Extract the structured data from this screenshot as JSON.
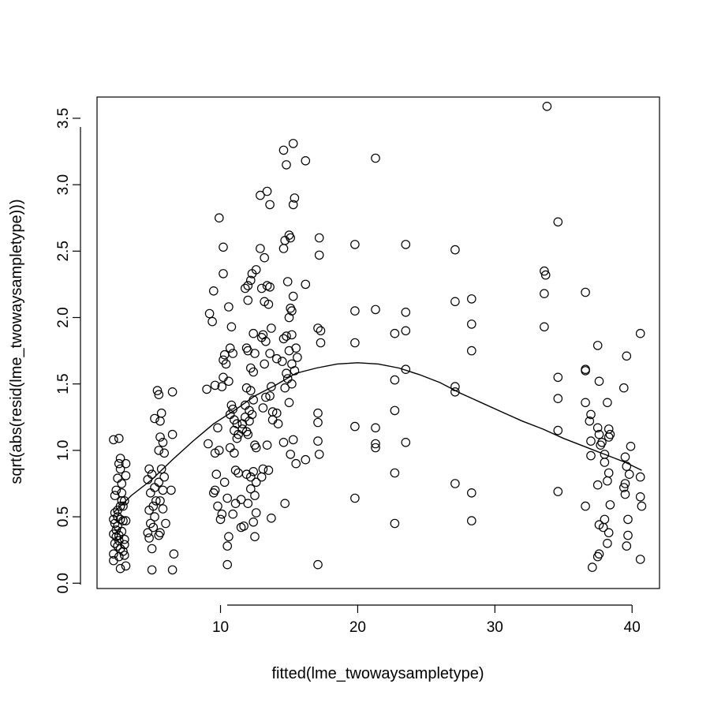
{
  "chart_data": {
    "type": "scatter",
    "xlabel": "fitted(lme_twowaysampletype)",
    "ylabel": "sqrt(abs(resid(lme_twowaysampletype)))",
    "xlim": [
      1.0,
      42.0
    ],
    "ylim": [
      -0.04,
      3.66
    ],
    "x_ticks": [
      10,
      20,
      30,
      40
    ],
    "y_ticks": [
      0.0,
      0.5,
      1.0,
      1.5,
      2.0,
      2.5,
      3.0,
      3.5
    ],
    "x_tick_labels": [
      "10",
      "20",
      "30",
      "40"
    ],
    "y_tick_labels": [
      "0.0",
      "0.5",
      "1.0",
      "1.5",
      "2.0",
      "2.5",
      "3.0",
      "3.5"
    ],
    "grid": false,
    "legend": "none",
    "points": [
      [
        2.2,
        1.08
      ],
      [
        2.6,
        1.09
      ],
      [
        2.7,
        0.94
      ],
      [
        2.6,
        0.9
      ],
      [
        2.7,
        0.86
      ],
      [
        2.5,
        0.79
      ],
      [
        2.8,
        0.75
      ],
      [
        3.1,
        0.9
      ],
      [
        3.1,
        0.81
      ],
      [
        2.4,
        0.7
      ],
      [
        2.3,
        0.66
      ],
      [
        2.8,
        0.62
      ],
      [
        3.0,
        0.62
      ],
      [
        2.7,
        0.58
      ],
      [
        2.5,
        0.55
      ],
      [
        2.3,
        0.53
      ],
      [
        2.2,
        0.48
      ],
      [
        2.3,
        0.45
      ],
      [
        2.5,
        0.43
      ],
      [
        2.7,
        0.48
      ],
      [
        2.9,
        0.47
      ],
      [
        3.1,
        0.47
      ],
      [
        2.4,
        0.4
      ],
      [
        2.2,
        0.37
      ],
      [
        2.6,
        0.36
      ],
      [
        2.8,
        0.39
      ],
      [
        3.0,
        0.33
      ],
      [
        2.3,
        0.3
      ],
      [
        2.5,
        0.28
      ],
      [
        2.7,
        0.26
      ],
      [
        2.9,
        0.24
      ],
      [
        2.2,
        0.22
      ],
      [
        2.6,
        0.2
      ],
      [
        3.0,
        0.21
      ],
      [
        2.2,
        0.17
      ],
      [
        2.7,
        0.11
      ],
      [
        3.1,
        0.13
      ],
      [
        2.4,
        0.35
      ],
      [
        2.6,
        0.32
      ],
      [
        2.9,
        0.58
      ],
      [
        2.5,
        0.5
      ],
      [
        2.8,
        0.68
      ],
      [
        3.0,
        0.29
      ],
      [
        4.8,
        0.86
      ],
      [
        5.0,
        0.82
      ],
      [
        4.7,
        0.78
      ],
      [
        5.2,
        0.72
      ],
      [
        4.9,
        0.68
      ],
      [
        5.3,
        0.62
      ],
      [
        5.1,
        0.58
      ],
      [
        4.8,
        0.55
      ],
      [
        5.2,
        0.5
      ],
      [
        4.9,
        0.45
      ],
      [
        5.1,
        0.42
      ],
      [
        4.7,
        0.38
      ],
      [
        4.8,
        0.34
      ],
      [
        5.5,
        0.36
      ],
      [
        5.0,
        0.26
      ],
      [
        5.4,
        1.45
      ],
      [
        5.5,
        1.42
      ],
      [
        5.2,
        1.24
      ],
      [
        5.7,
        1.28
      ],
      [
        5.6,
        1.22
      ],
      [
        5.6,
        1.1
      ],
      [
        5.8,
        1.06
      ],
      [
        5.5,
        1.0
      ],
      [
        5.9,
        0.98
      ],
      [
        5.7,
        0.86
      ],
      [
        5.9,
        0.8
      ],
      [
        5.5,
        0.76
      ],
      [
        5.8,
        0.7
      ],
      [
        5.6,
        0.62
      ],
      [
        5.8,
        0.56
      ],
      [
        6.0,
        0.45
      ],
      [
        5.6,
        0.38
      ],
      [
        6.5,
        1.44
      ],
      [
        6.5,
        1.12
      ],
      [
        6.4,
        0.7
      ],
      [
        6.6,
        0.22
      ],
      [
        6.5,
        0.1
      ],
      [
        5.0,
        0.1
      ],
      [
        9.9,
        2.75
      ],
      [
        9.5,
        2.2
      ],
      [
        9.2,
        2.03
      ],
      [
        9.4,
        1.97
      ],
      [
        9.0,
        1.46
      ],
      [
        9.6,
        1.49
      ],
      [
        9.1,
        1.05
      ],
      [
        9.8,
        1.17
      ],
      [
        9.6,
        0.98
      ],
      [
        9.9,
        1.0
      ],
      [
        9.7,
        0.82
      ],
      [
        10.3,
        0.76
      ],
      [
        9.5,
        0.68
      ],
      [
        9.6,
        0.7
      ],
      [
        9.8,
        0.58
      ],
      [
        10.1,
        0.52
      ],
      [
        10.0,
        0.48
      ],
      [
        10.2,
        2.53
      ],
      [
        10.2,
        2.33
      ],
      [
        10.6,
        2.08
      ],
      [
        10.8,
        1.93
      ],
      [
        10.7,
        1.77
      ],
      [
        10.9,
        1.73
      ],
      [
        10.3,
        1.72
      ],
      [
        10.2,
        1.68
      ],
      [
        10.4,
        1.65
      ],
      [
        10.2,
        1.55
      ],
      [
        10.6,
        1.52
      ],
      [
        10.1,
        1.48
      ],
      [
        10.8,
        1.34
      ],
      [
        10.9,
        1.31
      ],
      [
        10.7,
        1.27
      ],
      [
        11.0,
        1.23
      ],
      [
        11.2,
        1.2
      ],
      [
        11.0,
        1.15
      ],
      [
        11.3,
        1.12
      ],
      [
        11.2,
        1.09
      ],
      [
        10.7,
        1.02
      ],
      [
        11.0,
        0.98
      ],
      [
        11.1,
        0.85
      ],
      [
        11.3,
        0.83
      ],
      [
        10.5,
        0.64
      ],
      [
        11.1,
        0.6
      ],
      [
        10.9,
        0.52
      ],
      [
        10.6,
        0.35
      ],
      [
        10.5,
        0.28
      ],
      [
        10.5,
        0.14
      ],
      [
        11.5,
        0.63
      ],
      [
        11.5,
        0.42
      ],
      [
        11.7,
        0.43
      ],
      [
        12.0,
        2.24
      ],
      [
        11.8,
        2.22
      ],
      [
        12.3,
        2.33
      ],
      [
        12.2,
        2.28
      ],
      [
        12.6,
        2.36
      ],
      [
        12.0,
        2.13
      ],
      [
        12.4,
        1.88
      ],
      [
        11.9,
        1.77
      ],
      [
        12.0,
        1.75
      ],
      [
        12.5,
        1.73
      ],
      [
        12.2,
        1.62
      ],
      [
        12.4,
        1.59
      ],
      [
        11.9,
        1.47
      ],
      [
        12.2,
        1.45
      ],
      [
        12.4,
        1.38
      ],
      [
        11.8,
        1.34
      ],
      [
        12.1,
        1.3
      ],
      [
        12.3,
        1.27
      ],
      [
        11.8,
        1.25
      ],
      [
        12.1,
        1.22
      ],
      [
        11.9,
        1.14
      ],
      [
        12.0,
        1.12
      ],
      [
        12.5,
        1.04
      ],
      [
        12.6,
        1.02
      ],
      [
        11.6,
        1.16
      ],
      [
        11.6,
        1.2
      ],
      [
        12.4,
        0.84
      ],
      [
        11.9,
        0.82
      ],
      [
        12.2,
        0.8
      ],
      [
        12.6,
        0.76
      ],
      [
        12.2,
        0.71
      ],
      [
        12.5,
        0.66
      ],
      [
        12.0,
        0.6
      ],
      [
        12.6,
        0.53
      ],
      [
        12.4,
        0.46
      ],
      [
        12.5,
        0.35
      ],
      [
        12.9,
        2.92
      ],
      [
        13.4,
        2.95
      ],
      [
        13.6,
        2.85
      ],
      [
        12.9,
        2.52
      ],
      [
        13.2,
        2.45
      ],
      [
        13.4,
        2.24
      ],
      [
        13.0,
        2.22
      ],
      [
        13.6,
        2.23
      ],
      [
        13.2,
        2.12
      ],
      [
        13.5,
        2.1
      ],
      [
        13.7,
        1.92
      ],
      [
        13.1,
        1.87
      ],
      [
        13.0,
        1.85
      ],
      [
        13.3,
        1.82
      ],
      [
        13.6,
        1.73
      ],
      [
        13.2,
        1.65
      ],
      [
        13.7,
        1.48
      ],
      [
        13.3,
        1.4
      ],
      [
        13.6,
        1.41
      ],
      [
        13.8,
        1.29
      ],
      [
        13.1,
        1.32
      ],
      [
        13.8,
        1.23
      ],
      [
        13.4,
        1.04
      ],
      [
        13.1,
        0.86
      ],
      [
        13.5,
        0.85
      ],
      [
        13.0,
        0.8
      ],
      [
        13.7,
        0.49
      ],
      [
        14.1,
        1.69
      ],
      [
        14.1,
        1.28
      ],
      [
        14.2,
        1.2
      ],
      [
        14.6,
        1.84
      ],
      [
        14.8,
        1.86
      ],
      [
        14.5,
        1.67
      ],
      [
        14.8,
        1.58
      ],
      [
        14.9,
        1.54
      ],
      [
        14.7,
        1.47
      ],
      [
        15.0,
        1.36
      ],
      [
        14.6,
        1.06
      ],
      [
        14.7,
        0.6
      ],
      [
        14.6,
        3.26
      ],
      [
        14.8,
        3.15
      ],
      [
        15.0,
        2.62
      ],
      [
        14.7,
        2.58
      ],
      [
        14.6,
        2.52
      ],
      [
        15.1,
        2.6
      ],
      [
        15.3,
        2.85
      ],
      [
        15.4,
        2.9
      ],
      [
        14.9,
        2.27
      ],
      [
        15.1,
        2.07
      ],
      [
        15.2,
        2.05
      ],
      [
        15.0,
        2.0
      ],
      [
        15.3,
        2.16
      ],
      [
        15.0,
        1.75
      ],
      [
        15.2,
        1.87
      ],
      [
        15.5,
        1.77
      ],
      [
        15.6,
        1.7
      ],
      [
        15.2,
        1.65
      ],
      [
        15.4,
        1.6
      ],
      [
        15.2,
        1.5
      ],
      [
        15.3,
        1.08
      ],
      [
        15.1,
        0.97
      ],
      [
        15.5,
        0.9
      ],
      [
        15.3,
        3.31
      ],
      [
        16.2,
        3.18
      ],
      [
        16.2,
        2.25
      ],
      [
        16.2,
        0.93
      ],
      [
        17.2,
        2.6
      ],
      [
        17.2,
        2.47
      ],
      [
        17.1,
        1.92
      ],
      [
        17.3,
        1.9
      ],
      [
        17.3,
        1.81
      ],
      [
        17.1,
        1.28
      ],
      [
        17.1,
        1.21
      ],
      [
        17.1,
        1.07
      ],
      [
        17.2,
        0.97
      ],
      [
        17.1,
        0.14
      ],
      [
        19.8,
        2.55
      ],
      [
        19.8,
        2.05
      ],
      [
        19.8,
        1.81
      ],
      [
        19.8,
        1.18
      ],
      [
        19.8,
        0.64
      ],
      [
        21.3,
        3.2
      ],
      [
        21.3,
        2.06
      ],
      [
        21.3,
        1.17
      ],
      [
        21.3,
        1.05
      ],
      [
        21.3,
        1.02
      ],
      [
        22.7,
        1.88
      ],
      [
        22.7,
        1.53
      ],
      [
        22.7,
        1.3
      ],
      [
        22.7,
        0.83
      ],
      [
        22.7,
        0.45
      ],
      [
        23.5,
        2.55
      ],
      [
        23.5,
        2.04
      ],
      [
        23.5,
        1.9
      ],
      [
        23.5,
        1.61
      ],
      [
        23.5,
        1.06
      ],
      [
        27.1,
        2.51
      ],
      [
        27.1,
        2.12
      ],
      [
        27.1,
        1.48
      ],
      [
        27.1,
        1.44
      ],
      [
        27.1,
        0.75
      ],
      [
        28.3,
        2.14
      ],
      [
        28.3,
        1.95
      ],
      [
        28.3,
        1.75
      ],
      [
        28.3,
        0.68
      ],
      [
        28.3,
        0.47
      ],
      [
        33.8,
        3.59
      ],
      [
        33.6,
        2.35
      ],
      [
        33.7,
        2.32
      ],
      [
        33.6,
        2.18
      ],
      [
        33.6,
        1.93
      ],
      [
        34.6,
        2.72
      ],
      [
        34.6,
        1.55
      ],
      [
        34.6,
        1.39
      ],
      [
        34.6,
        1.15
      ],
      [
        34.6,
        0.69
      ],
      [
        36.6,
        2.19
      ],
      [
        36.6,
        1.6
      ],
      [
        36.6,
        1.36
      ],
      [
        37.0,
        1.27
      ],
      [
        36.9,
        1.22
      ],
      [
        37.0,
        1.07
      ],
      [
        37.0,
        0.96
      ],
      [
        36.6,
        0.58
      ],
      [
        37.5,
        1.79
      ],
      [
        37.6,
        1.52
      ],
      [
        37.5,
        1.17
      ],
      [
        37.6,
        1.12
      ],
      [
        37.8,
        1.06
      ],
      [
        37.7,
        1.04
      ],
      [
        38.2,
        1.36
      ],
      [
        38.3,
        1.16
      ],
      [
        38.4,
        1.12
      ],
      [
        38.3,
        1.1
      ],
      [
        38.0,
        0.97
      ],
      [
        38.0,
        0.91
      ],
      [
        38.3,
        0.83
      ],
      [
        38.2,
        0.77
      ],
      [
        38.4,
        0.59
      ],
      [
        38.0,
        0.48
      ],
      [
        37.6,
        0.44
      ],
      [
        37.9,
        0.42
      ],
      [
        38.3,
        0.38
      ],
      [
        38.2,
        0.3
      ],
      [
        37.6,
        0.22
      ],
      [
        37.5,
        0.2
      ],
      [
        37.1,
        0.12
      ],
      [
        37.5,
        0.74
      ],
      [
        39.4,
        1.47
      ],
      [
        39.6,
        1.71
      ],
      [
        39.5,
        0.95
      ],
      [
        39.6,
        0.88
      ],
      [
        39.5,
        0.75
      ],
      [
        39.4,
        0.72
      ],
      [
        39.8,
        0.82
      ],
      [
        39.5,
        0.67
      ],
      [
        39.7,
        0.48
      ],
      [
        39.7,
        0.36
      ],
      [
        39.6,
        0.28
      ],
      [
        39.9,
        1.03
      ],
      [
        40.6,
        1.88
      ],
      [
        40.6,
        0.8
      ],
      [
        40.6,
        0.65
      ],
      [
        40.7,
        0.58
      ],
      [
        40.6,
        0.18
      ],
      [
        36.6,
        1.61
      ]
    ],
    "smooth_line": {
      "x": [
        2.2,
        3.5,
        5,
        6.5,
        8,
        9.5,
        11,
        12.5,
        14,
        15.5,
        17,
        18.5,
        20,
        21.5,
        23,
        24.5,
        26,
        27.5,
        29,
        30.5,
        32,
        33.5,
        35,
        36.5,
        38,
        39.5,
        40.7
      ],
      "y": [
        0.53,
        0.66,
        0.78,
        0.93,
        1.07,
        1.2,
        1.3,
        1.41,
        1.49,
        1.58,
        1.62,
        1.65,
        1.66,
        1.65,
        1.62,
        1.57,
        1.51,
        1.43,
        1.36,
        1.29,
        1.22,
        1.16,
        1.09,
        1.03,
        0.97,
        0.91,
        0.85
      ]
    }
  }
}
